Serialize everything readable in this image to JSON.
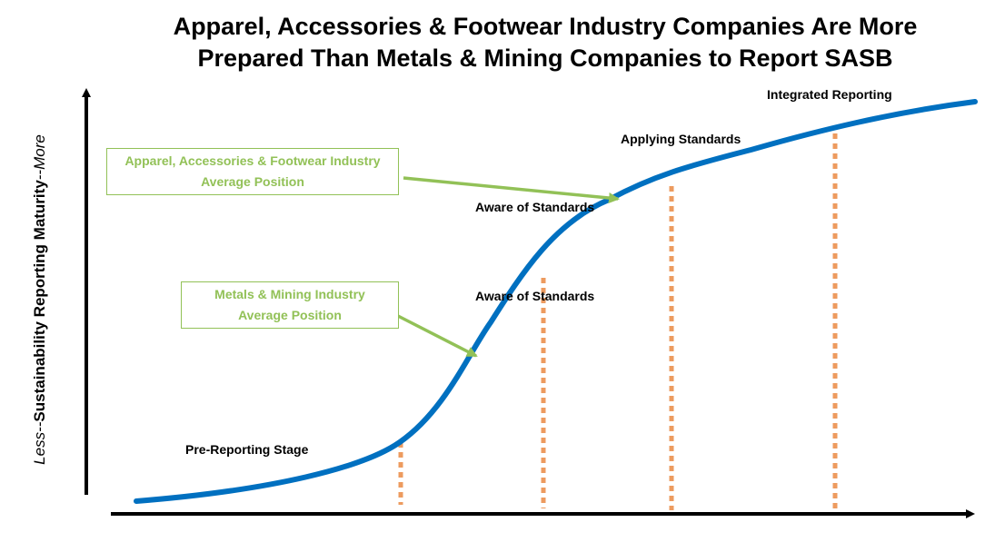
{
  "title": {
    "line1": "Apparel, Accessories & Footwear Industry Companies Are More",
    "line2": "Prepared Than Metals & Mining Companies to Report SASB"
  },
  "y_axis": {
    "less": "Less",
    "sep1": "--",
    "main": "Sustainability Reporting Maturity",
    "sep2": "--",
    "more": "More"
  },
  "stages": {
    "pre_reporting": "Pre-Reporting Stage",
    "aware_lower": "Aware of Standards",
    "aware_upper": "Aware of Standards",
    "applying": "Applying Standards",
    "integrated": "Integrated Reporting"
  },
  "callouts": {
    "apparel": {
      "line1": "Apparel, Accessories & Footwear Industry",
      "line2": "Average Position"
    },
    "metals": {
      "line1": "Metals & Mining Industry",
      "line2": "Average Position"
    }
  },
  "colors": {
    "curve": "#0070c0",
    "divider": "#ed9b5f",
    "callout": "#92c157",
    "axis": "#000000"
  }
}
